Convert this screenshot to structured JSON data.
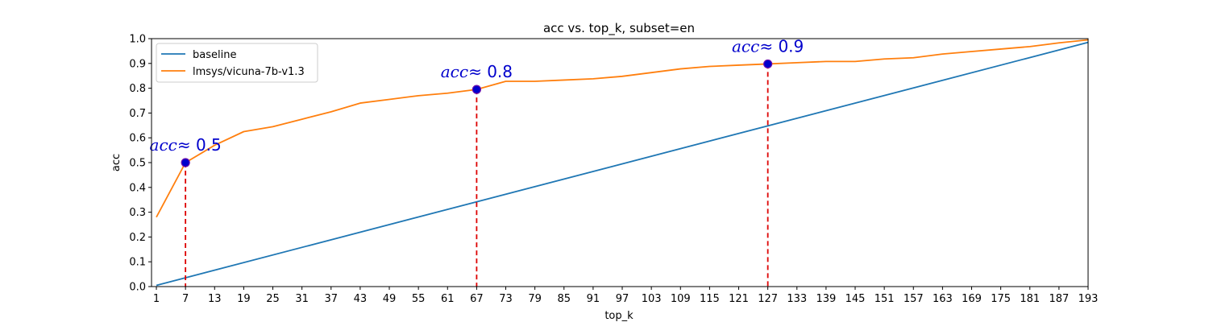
{
  "chart_data": {
    "type": "line",
    "title": "acc vs. top_k, subset=en",
    "xlabel": "top_k",
    "ylabel": "acc",
    "xlim": [
      0,
      193
    ],
    "ylim": [
      0.0,
      1.0
    ],
    "x_ticks": [
      1,
      7,
      13,
      19,
      25,
      31,
      37,
      43,
      49,
      55,
      61,
      67,
      73,
      79,
      85,
      91,
      97,
      103,
      109,
      115,
      121,
      127,
      133,
      139,
      145,
      151,
      157,
      163,
      169,
      175,
      181,
      187,
      193
    ],
    "y_ticks": [
      0.0,
      0.1,
      0.2,
      0.3,
      0.4,
      0.5,
      0.6,
      0.7,
      0.8,
      0.9,
      1.0
    ],
    "grid": false,
    "legend_position": "upper-left",
    "series": [
      {
        "name": "baseline",
        "color": "#1f77b4",
        "x": [
          1,
          193
        ],
        "y": [
          0.005,
          0.985
        ]
      },
      {
        "name": "lmsys/vicuna-7b-v1.3",
        "color": "#ff7f0e",
        "x": [
          1,
          7,
          13,
          19,
          25,
          31,
          37,
          43,
          49,
          55,
          61,
          67,
          73,
          79,
          85,
          91,
          97,
          103,
          109,
          115,
          121,
          127,
          133,
          139,
          145,
          151,
          157,
          163,
          169,
          175,
          181,
          187,
          193
        ],
        "y": [
          0.28,
          0.5,
          0.57,
          0.625,
          0.645,
          0.675,
          0.705,
          0.74,
          0.755,
          0.77,
          0.78,
          0.795,
          0.828,
          0.828,
          0.833,
          0.838,
          0.848,
          0.863,
          0.878,
          0.888,
          0.893,
          0.898,
          0.903,
          0.908,
          0.908,
          0.918,
          0.923,
          0.938,
          0.948,
          0.958,
          0.968,
          0.983,
          0.995
        ]
      }
    ],
    "markers": [
      {
        "x": 7,
        "y": 0.5,
        "label_var": "acc",
        "label_rest": "≈ 0.5"
      },
      {
        "x": 67,
        "y": 0.795,
        "label_var": "acc",
        "label_rest": "≈ 0.8"
      },
      {
        "x": 127,
        "y": 0.898,
        "label_var": "acc",
        "label_rest": "≈ 0.9"
      }
    ],
    "colors": {
      "marker_fill": "#0000cc",
      "marker_edge": "#6a0dad",
      "dropline": "#dd0000",
      "annotation_text": "#0000cc"
    }
  }
}
